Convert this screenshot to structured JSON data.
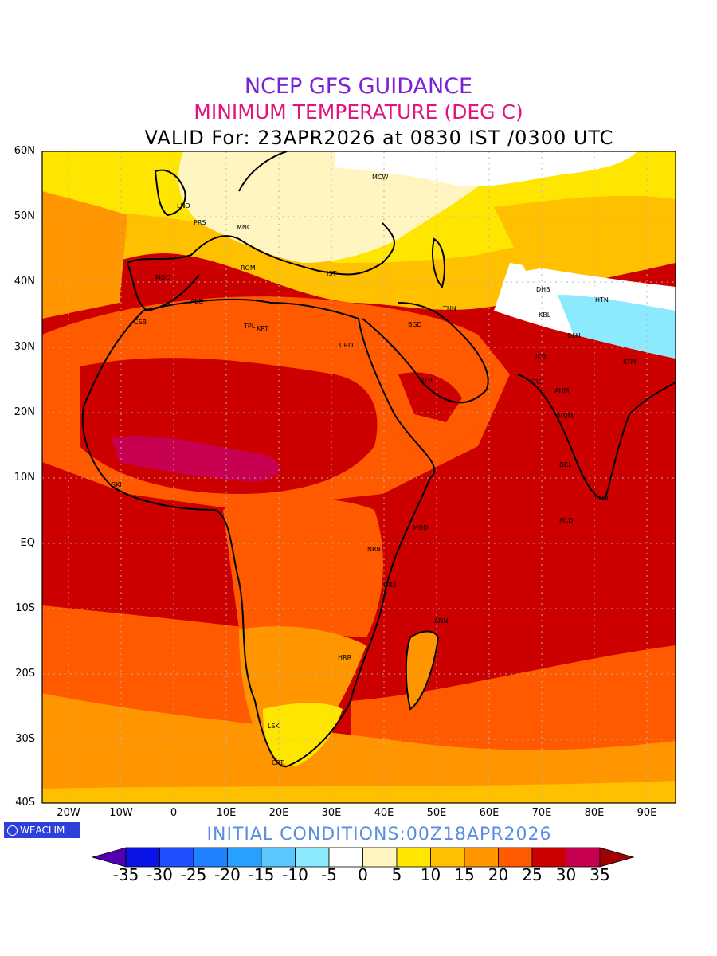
{
  "titles": {
    "line1": "NCEP GFS GUIDANCE",
    "line2": "MINIMUM TEMPERATURE (DEG C)",
    "line3": "VALID For: 23APR2026 at 0830 IST /0300 UTC"
  },
  "lat_labels": [
    "60N",
    "50N",
    "40N",
    "30N",
    "20N",
    "10N",
    "EQ",
    "10S",
    "20S",
    "30S",
    "40S"
  ],
  "lon_labels": [
    "20W",
    "10W",
    "0",
    "10E",
    "20E",
    "30E",
    "40E",
    "50E",
    "60E",
    "70E",
    "80E",
    "90E"
  ],
  "logo": "WEACLIM",
  "initial_conditions": "INITIAL CONDITIONS:00Z18APR2026",
  "colorbar": {
    "labels": [
      "-35",
      "-30",
      "-25",
      "-20",
      "-15",
      "-10",
      "-5",
      "0",
      "5",
      "10",
      "15",
      "20",
      "25",
      "30",
      "35"
    ],
    "colors": [
      "#5000b0",
      "#0a14e6",
      "#1e50ff",
      "#1e82ff",
      "#28a0ff",
      "#5ac8ff",
      "#8ceaff",
      "#ffffff",
      "#fff5c0",
      "#ffe600",
      "#ffc000",
      "#ff9600",
      "#ff5a00",
      "#cd0000",
      "#c80050",
      "#a00000"
    ]
  },
  "city_labels": [
    "MCW",
    "LND",
    "PRS",
    "MNC",
    "MDD",
    "ROM",
    "IST",
    "ALG",
    "CSB",
    "TPL",
    "KRT",
    "CRO",
    "BGD",
    "THN",
    "DHB",
    "HTN",
    "KBL",
    "DLH",
    "JCB",
    "RYH",
    "KRC",
    "AHM",
    "MUM",
    "DEL",
    "CHN",
    "MLD",
    "MGD",
    "NRB",
    "DRS",
    "ANN",
    "HRR",
    "LSK",
    "CPT",
    "SKI",
    "KTM"
  ],
  "field_legend_units": "DEG C"
}
